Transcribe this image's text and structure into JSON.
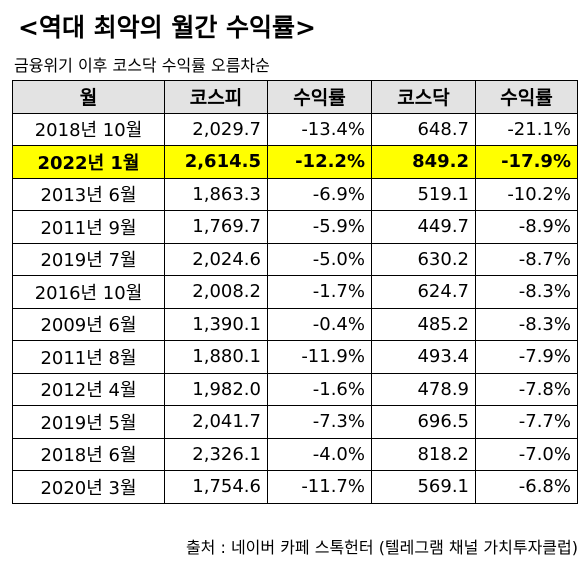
{
  "title": "<역대 최악의 월간 수익률>",
  "subtitle": "금융위기 이후 코스닥 수익률 오름차순",
  "table": {
    "headers": [
      "월",
      "코스피",
      "수익률",
      "코스닥",
      "수익률"
    ],
    "rows": [
      {
        "month": "2018년 10월",
        "kospi": "2,029.7",
        "kospi_return": "-13.4%",
        "kosdaq": "648.7",
        "kosdaq_return": "-21.1%",
        "highlight": false
      },
      {
        "month": "2022년 1월",
        "kospi": "2,614.5",
        "kospi_return": "-12.2%",
        "kosdaq": "849.2",
        "kosdaq_return": "-17.9%",
        "highlight": true
      },
      {
        "month": "2013년 6월",
        "kospi": "1,863.3",
        "kospi_return": "-6.9%",
        "kosdaq": "519.1",
        "kosdaq_return": "-10.2%",
        "highlight": false
      },
      {
        "month": "2011년 9월",
        "kospi": "1,769.7",
        "kospi_return": "-5.9%",
        "kosdaq": "449.7",
        "kosdaq_return": "-8.9%",
        "highlight": false
      },
      {
        "month": "2019년 7월",
        "kospi": "2,024.6",
        "kospi_return": "-5.0%",
        "kosdaq": "630.2",
        "kosdaq_return": "-8.7%",
        "highlight": false
      },
      {
        "month": "2016년 10월",
        "kospi": "2,008.2",
        "kospi_return": "-1.7%",
        "kosdaq": "624.7",
        "kosdaq_return": "-8.3%",
        "highlight": false
      },
      {
        "month": "2009년 6월",
        "kospi": "1,390.1",
        "kospi_return": "-0.4%",
        "kosdaq": "485.2",
        "kosdaq_return": "-8.3%",
        "highlight": false
      },
      {
        "month": "2011년 8월",
        "kospi": "1,880.1",
        "kospi_return": "-11.9%",
        "kosdaq": "493.4",
        "kosdaq_return": "-7.9%",
        "highlight": false
      },
      {
        "month": "2012년 4월",
        "kospi": "1,982.0",
        "kospi_return": "-1.6%",
        "kosdaq": "478.9",
        "kosdaq_return": "-7.8%",
        "highlight": false
      },
      {
        "month": "2019년 5월",
        "kospi": "2,041.7",
        "kospi_return": "-7.3%",
        "kosdaq": "696.5",
        "kosdaq_return": "-7.7%",
        "highlight": false
      },
      {
        "month": "2018년 6월",
        "kospi": "2,326.1",
        "kospi_return": "-4.0%",
        "kosdaq": "818.2",
        "kosdaq_return": "-7.0%",
        "highlight": false
      },
      {
        "month": "2020년 3월",
        "kospi": "1,754.6",
        "kospi_return": "-11.7%",
        "kosdaq": "569.1",
        "kosdaq_return": "-6.8%",
        "highlight": false
      }
    ]
  },
  "source": "출처 : 네이버 카페 스톡헌터 (텔레그램 채널 가치투자클럽)",
  "colors": {
    "header_background": "#e3e3e3",
    "highlight_background": "#ffff00"
  }
}
